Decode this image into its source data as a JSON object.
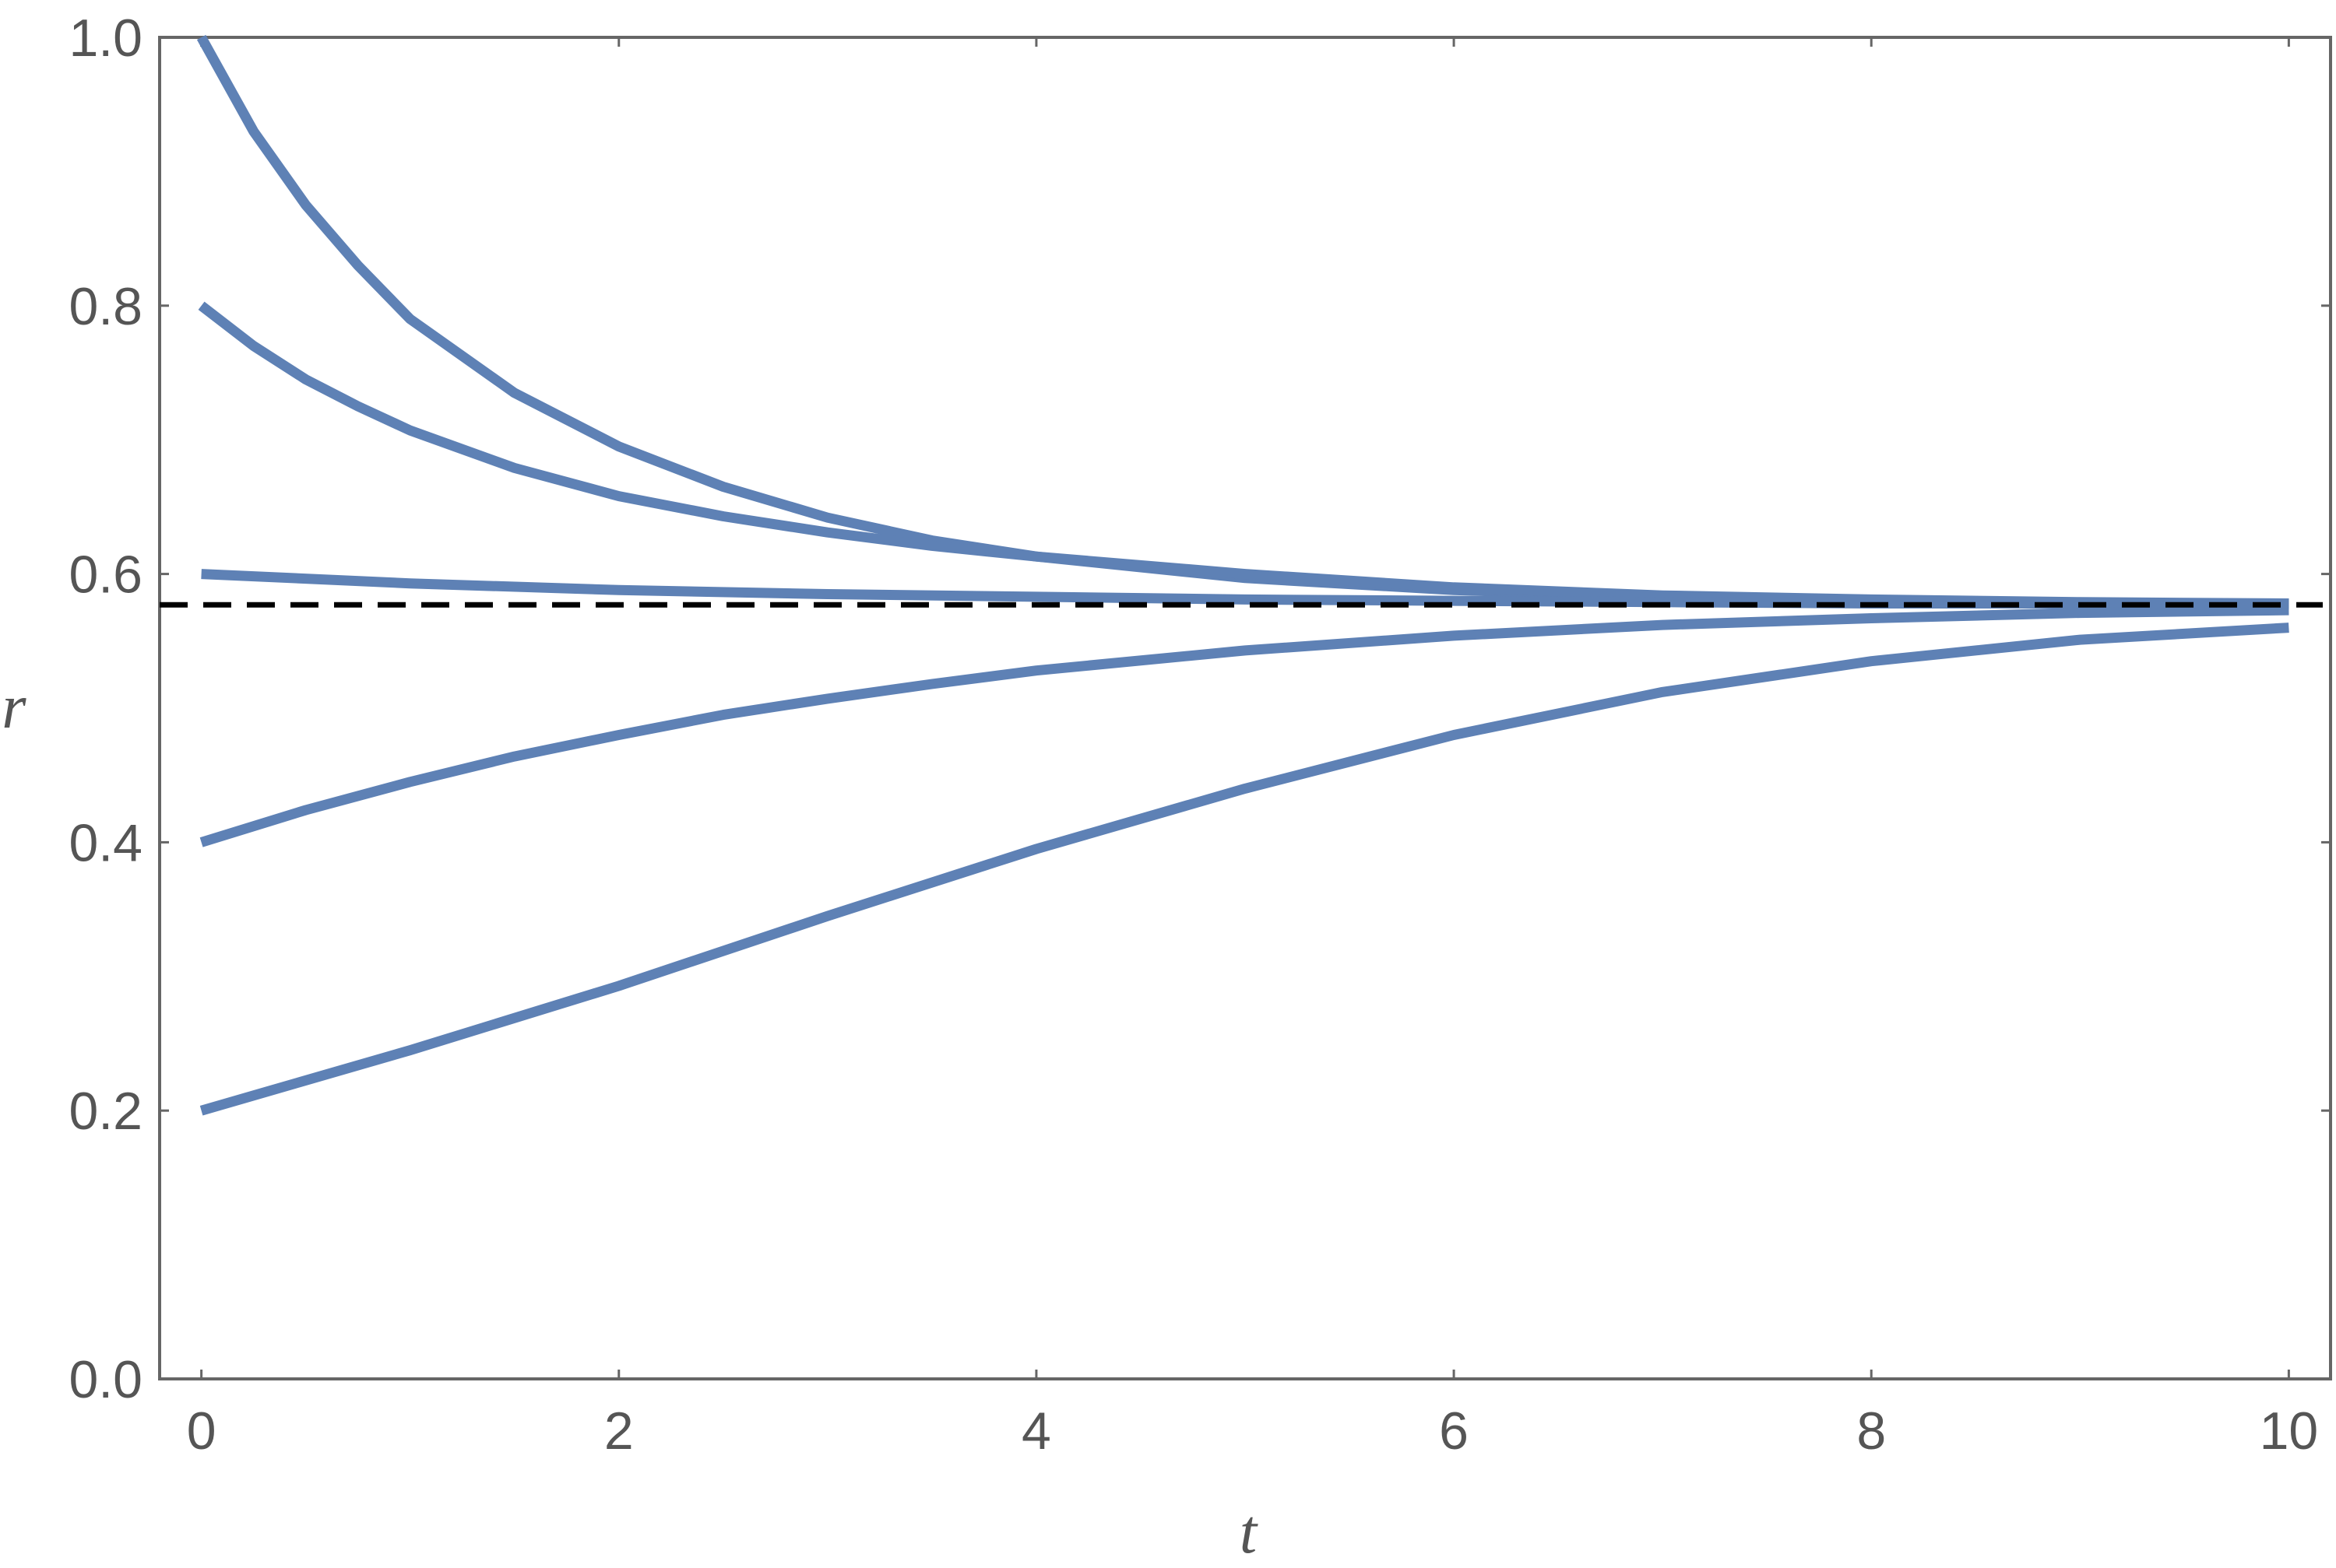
{
  "chart_data": {
    "type": "line",
    "title": "",
    "xlabel": "t",
    "ylabel": "r",
    "xlim": [
      -0.2,
      10.2
    ],
    "ylim": [
      0,
      1.0
    ],
    "xticks": [
      "0",
      "2",
      "4",
      "6",
      "8",
      "10"
    ],
    "xtick_values": [
      0,
      2,
      4,
      6,
      8,
      10
    ],
    "yticks": [
      "0.0",
      "0.2",
      "0.4",
      "0.6",
      "0.8",
      "1.0"
    ],
    "ytick_values": [
      0,
      0.2,
      0.4,
      0.6,
      0.8,
      1.0
    ],
    "grid": false,
    "legend": "none",
    "series_color": "#5e81b5",
    "reference_color": "#000000",
    "reference_line": {
      "y": 0.577,
      "style": "dashed"
    },
    "series": [
      {
        "x": [
          0,
          0.25,
          0.5,
          0.75,
          1,
          1.5,
          2,
          2.5,
          3,
          3.5,
          4,
          5,
          6,
          7,
          8,
          9,
          10
        ],
        "y": [
          1.0,
          0.93,
          0.875,
          0.83,
          0.79,
          0.735,
          0.695,
          0.665,
          0.642,
          0.625,
          0.613,
          0.597,
          0.588,
          0.583,
          0.58,
          0.578,
          0.578
        ]
      },
      {
        "x": [
          0,
          0.25,
          0.5,
          0.75,
          1,
          1.5,
          2,
          2.5,
          3,
          3.5,
          4,
          5,
          6,
          7,
          8,
          9,
          10
        ],
        "y": [
          0.8,
          0.77,
          0.745,
          0.725,
          0.707,
          0.679,
          0.658,
          0.643,
          0.631,
          0.621,
          0.613,
          0.6,
          0.59,
          0.584,
          0.581,
          0.579,
          0.578
        ]
      },
      {
        "x": [
          0,
          1,
          2,
          3,
          4,
          5,
          6,
          7,
          8,
          9,
          10
        ],
        "y": [
          0.6,
          0.593,
          0.588,
          0.585,
          0.583,
          0.581,
          0.58,
          0.579,
          0.578,
          0.578,
          0.577
        ]
      },
      {
        "x": [
          0,
          0.5,
          1,
          1.5,
          2,
          2.5,
          3,
          3.5,
          4,
          5,
          6,
          7,
          8,
          9,
          10
        ],
        "y": [
          0.4,
          0.424,
          0.445,
          0.464,
          0.48,
          0.495,
          0.507,
          0.518,
          0.528,
          0.543,
          0.554,
          0.562,
          0.567,
          0.571,
          0.573
        ]
      },
      {
        "x": [
          0,
          1,
          2,
          3,
          4,
          5,
          6,
          7,
          8,
          9,
          10
        ],
        "y": [
          0.2,
          0.245,
          0.293,
          0.345,
          0.395,
          0.44,
          0.48,
          0.512,
          0.535,
          0.551,
          0.56
        ]
      }
    ]
  }
}
